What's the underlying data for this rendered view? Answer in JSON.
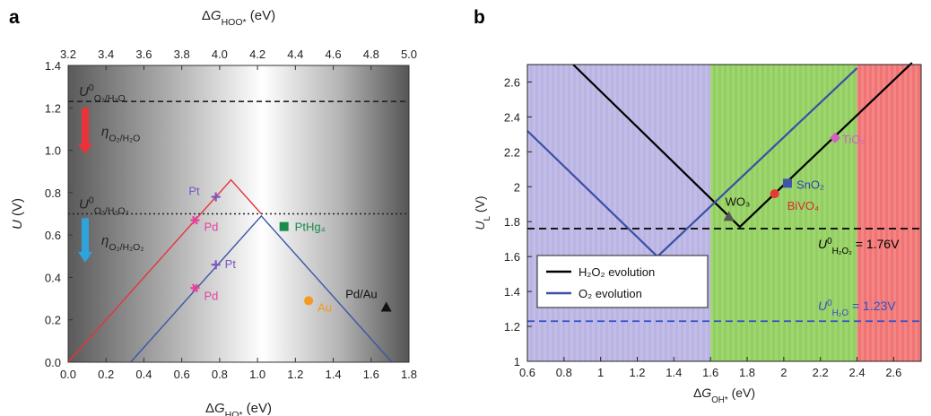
{
  "chart_data": [
    {
      "type": "line",
      "panel_label": "a",
      "xlabel": "ΔG_HO* (eV)",
      "ylabel": "U (V)",
      "x2label": "ΔG_HOO* (eV)",
      "xlim": [
        0.0,
        1.8
      ],
      "ylim": [
        0.0,
        1.4
      ],
      "x2lim": [
        3.2,
        5.0
      ],
      "xticks": [
        "0.0",
        "0.2",
        "0.4",
        "0.6",
        "0.8",
        "1.0",
        "1.2",
        "1.4",
        "1.6",
        "1.8"
      ],
      "yticks": [
        "0.0",
        "0.2",
        "0.4",
        "0.6",
        "0.8",
        "1.0",
        "1.2",
        "1.4"
      ],
      "x2ticks": [
        "3.2",
        "3.4",
        "3.6",
        "3.8",
        "4.0",
        "4.2",
        "4.4",
        "4.6",
        "4.8",
        "5.0"
      ],
      "background": "gradient grey, lightest near ΔG_HO* ≈ 1.0 eV",
      "series": [
        {
          "color": "#e8333b",
          "x": [
            0.0,
            0.86,
            1.02
          ],
          "y": [
            0.0,
            0.86,
            0.7
          ]
        },
        {
          "color": "#3d55a6",
          "x": [
            0.33,
            1.02,
            1.71
          ],
          "y": [
            0.0,
            0.69,
            0.0
          ]
        }
      ],
      "reference_lines": [
        {
          "y": 1.23,
          "style": "dashed",
          "color": "#222222",
          "label": "U0 O2/H2O",
          "label_main": "U",
          "label_sup": "0",
          "label_sub": "O₂/H₂O"
        },
        {
          "y": 0.7,
          "style": "dotted",
          "color": "#222222",
          "label": "U0 O2/H2O2",
          "label_main": "U",
          "label_sup": "0",
          "label_sub": "O₂/H₂O₂"
        }
      ],
      "arrows": [
        {
          "label": "η O2/H2O",
          "label_main": "η",
          "label_sub": "O₂/H₂O",
          "color": "#e8333b",
          "x": 0.09,
          "y_top": 1.2,
          "y_bottom": 0.98
        },
        {
          "label": "η O2/H2O2",
          "label_main": "η",
          "label_sub": "O₂/H₂O₂",
          "color": "#2ea3dc",
          "x": 0.09,
          "y_top": 0.68,
          "y_bottom": 0.47
        }
      ],
      "points": [
        {
          "label": "Pt",
          "x": 0.78,
          "y": 0.78,
          "color": "#7b56c2",
          "marker": "plus"
        },
        {
          "label": "Pd",
          "x": 0.67,
          "y": 0.67,
          "color": "#e83f9c",
          "marker": "star"
        },
        {
          "label": "Pt",
          "x": 0.78,
          "y": 0.46,
          "color": "#7b56c2",
          "marker": "plus"
        },
        {
          "label": "Pd",
          "x": 0.67,
          "y": 0.35,
          "color": "#e83f9c",
          "marker": "star"
        },
        {
          "label": "PtHg₄",
          "x": 1.14,
          "y": 0.64,
          "color": "#178c4b",
          "marker": "square"
        },
        {
          "label": "Au",
          "x": 1.27,
          "y": 0.29,
          "color": "#f39b1e",
          "marker": "circle"
        },
        {
          "label": "Pd/Au",
          "x": 1.68,
          "y": 0.26,
          "color": "#111111",
          "marker": "triangle"
        }
      ]
    },
    {
      "type": "line",
      "panel_label": "b",
      "xlabel": "ΔG_OH* (eV)",
      "ylabel": "U_L (V)",
      "xlim": [
        0.6,
        2.75
      ],
      "ylim": [
        1.0,
        2.7
      ],
      "xticks": [
        "0.6",
        "0.8",
        "1",
        "1.2",
        "1.4",
        "1.6",
        "1.8",
        "2",
        "2.2",
        "2.4",
        "2.6"
      ],
      "yticks": [
        "1",
        "1.2",
        "1.4",
        "1.6",
        "1.8",
        "2",
        "2.2",
        "2.4",
        "2.6"
      ],
      "regions": [
        {
          "x": [
            0.6,
            1.6
          ],
          "color": "#b9b4e3"
        },
        {
          "x": [
            1.6,
            2.4
          ],
          "color": "#92cf5f"
        },
        {
          "x": [
            2.4,
            2.75
          ],
          "color": "#f17474"
        }
      ],
      "series": [
        {
          "name": "H₂O₂ evolution",
          "color": "#000000",
          "x": [
            0.85,
            1.76,
            2.7
          ],
          "y": [
            2.7,
            1.77,
            2.71
          ]
        },
        {
          "name": "O₂ evolution",
          "color": "#3d4fa6",
          "x": [
            0.6,
            1.31,
            2.4
          ],
          "y": [
            2.32,
            1.6,
            2.68
          ]
        }
      ],
      "reference_lines": [
        {
          "y": 1.76,
          "style": "dashed",
          "color": "#000000",
          "label": "U0 H2O2 = 1.76V",
          "label_main": "U",
          "label_sup": "0",
          "label_sub": "H₂O₂",
          "label_value": " = 1.76V"
        },
        {
          "y": 1.23,
          "style": "dashed",
          "color": "#3050c8",
          "label": "U0 H2O = 1.23V",
          "label_main": "U",
          "label_sup": "0",
          "label_sub": "H₂O",
          "label_value": " = 1.23V"
        }
      ],
      "points": [
        {
          "label": "WO₃",
          "x": 1.7,
          "y": 1.83,
          "color": "#555555",
          "marker": "triangle",
          "label_color": "#111111"
        },
        {
          "label": "BiVO₄",
          "x": 1.95,
          "y": 1.96,
          "color": "#e53935",
          "marker": "circle",
          "label_color": "#d32f2f"
        },
        {
          "label": "SnO₂",
          "x": 2.02,
          "y": 2.02,
          "color": "#3f55a8",
          "marker": "square",
          "label_color": "#2a46a8"
        },
        {
          "label": "TiO₂",
          "x": 2.28,
          "y": 2.28,
          "color": "#d160c4",
          "marker": "diamond",
          "label_color": "#d160c4"
        }
      ],
      "legend": {
        "position": "bottom-left",
        "entries": [
          "H₂O₂ evolution",
          "O₂ evolution"
        ]
      }
    }
  ]
}
